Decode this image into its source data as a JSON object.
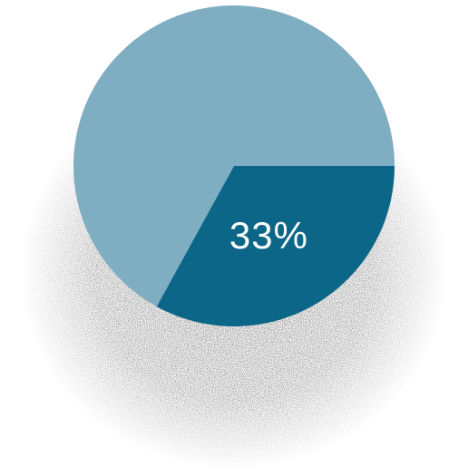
{
  "chart_data": {
    "type": "pie",
    "slices": [
      {
        "value": 33,
        "label": "33%",
        "color": "#0b6688"
      },
      {
        "value": 67,
        "label": "",
        "color": "#7fadc2"
      }
    ],
    "title": "",
    "legend": "none"
  },
  "colors": {
    "shadow": "#111111",
    "background": "#ffffff",
    "label": "#ffffff"
  }
}
